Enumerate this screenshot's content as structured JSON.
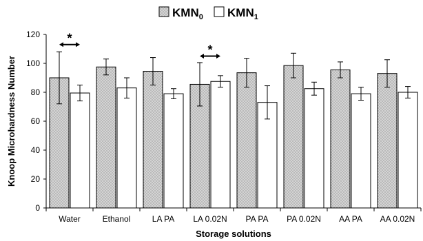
{
  "chart_data": {
    "type": "bar",
    "title": "",
    "xlabel": "Storage solutions",
    "ylabel": "Knoop Microhardness Number",
    "ylim": [
      0,
      120
    ],
    "yticks": [
      0,
      20,
      40,
      60,
      80,
      100,
      120
    ],
    "grid": false,
    "legend_position": "top-center",
    "categories": [
      "Water",
      "Ethanol",
      "LA PA",
      "LA 0.02N",
      "PA PA",
      "PA 0.02N",
      "AA PA",
      "AA 0.02N"
    ],
    "series": [
      {
        "name": "KMN",
        "name_sub": "0",
        "fill": "dotted-gray",
        "color": "#d9d9d9",
        "values": [
          90,
          97.5,
          94.5,
          85.5,
          93.5,
          98.5,
          95.5,
          93
        ],
        "errors": [
          18,
          5.5,
          9.5,
          15,
          10,
          8.5,
          5.5,
          9.5
        ]
      },
      {
        "name": "KMN",
        "name_sub": "1",
        "fill": "white",
        "color": "#ffffff",
        "values": [
          79.5,
          83,
          79,
          87.5,
          73,
          82.5,
          79,
          80
        ],
        "errors": [
          5.5,
          7,
          3.5,
          4,
          11.5,
          4.5,
          4.5,
          4
        ]
      }
    ],
    "annotations": [
      {
        "text": "*",
        "from_category": "Water",
        "to_category": "Water",
        "y": 113
      },
      {
        "text": "*",
        "from_category": "LA 0.02N",
        "to_category": "LA 0.02N",
        "y": 105
      }
    ]
  }
}
